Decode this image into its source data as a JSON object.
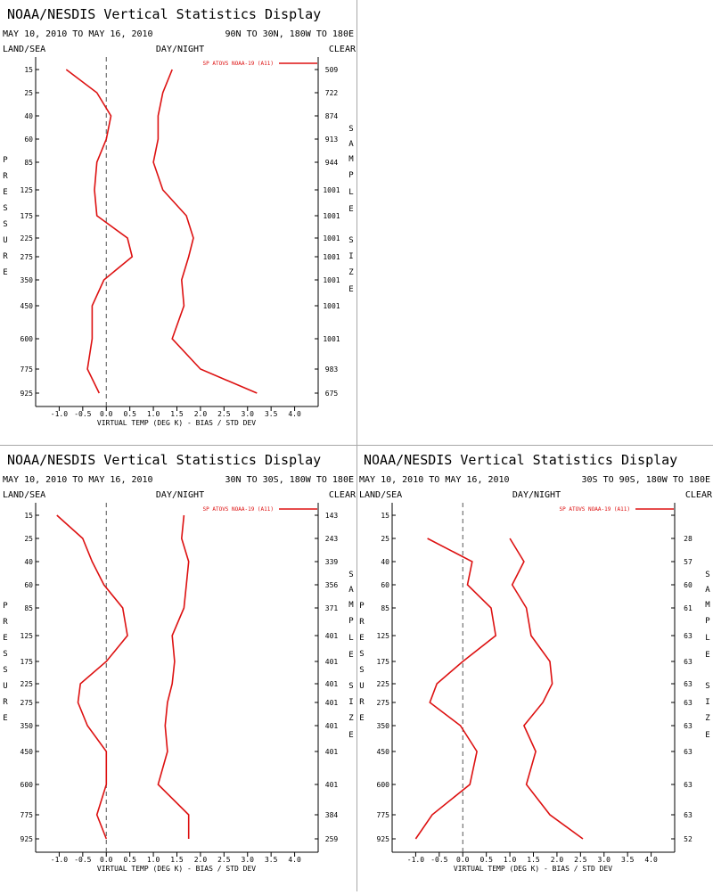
{
  "display_title": "NOAA/NESDIS Vertical Statistics Display",
  "header": {
    "date_range": "MAY 10, 2010 TO MAY 16, 2010",
    "land_sea": "LAND/SEA",
    "day_night": "DAY/NIGHT",
    "clear": "CLEAR"
  },
  "axis": {
    "xlabel": "VIRTUAL TEMP (DEG K) - BIAS / STD DEV",
    "ylabel_letters": [
      "P",
      "R",
      "E",
      "S",
      "S",
      "U",
      "R",
      "E"
    ],
    "y2label_letters": [
      "S",
      "A",
      "M",
      "P",
      "L",
      "E",
      "S",
      "I",
      "Z",
      "E"
    ],
    "x_ticks": [
      "-1.0",
      "-0.5",
      "0.0",
      "0.5",
      "1.0",
      "1.5",
      "2.0",
      "2.5",
      "3.0",
      "3.5",
      "4.0"
    ],
    "pressure_levels": [
      "15",
      "25",
      "40",
      "60",
      "85",
      "125",
      "175",
      "225",
      "275",
      "350",
      "450",
      "600",
      "775",
      "925"
    ]
  },
  "colors": {
    "line": "#dd1111",
    "zero_line": "#555555"
  },
  "chart_data": [
    {
      "type": "line",
      "region": "90N TO 30N, 180W TO 180E",
      "legend": "SP ATOVS NOAA-19 (A11)",
      "legend_position": "top-right",
      "xlim": [
        -1.5,
        4.5
      ],
      "xticks": [
        -1.0,
        -0.5,
        0.0,
        0.5,
        1.0,
        1.5,
        2.0,
        2.5,
        3.0,
        3.5,
        4.0
      ],
      "pressure": [
        15,
        25,
        40,
        60,
        85,
        125,
        175,
        225,
        275,
        350,
        450,
        600,
        775,
        925
      ],
      "series": [
        {
          "values": [
            -0.85,
            -0.2,
            0.1,
            0.0,
            -0.2,
            -0.25,
            -0.2,
            0.45,
            0.55,
            -0.05,
            -0.3,
            -0.3,
            -0.4,
            -0.15
          ]
        },
        {
          "values": [
            1.4,
            1.2,
            1.1,
            1.1,
            1.0,
            1.2,
            1.7,
            1.85,
            1.75,
            1.6,
            1.65,
            1.4,
            2.0,
            3.2
          ]
        }
      ],
      "sample_size": [
        "509",
        "722",
        "874",
        "913",
        "944",
        "1001",
        "1001",
        "1001",
        "1001",
        "1001",
        "1001",
        "1001",
        "983",
        "675"
      ]
    },
    {
      "type": "line",
      "region": "30N TO 30S, 180W TO 180E",
      "legend": "SP ATOVS NOAA-19 (A11)",
      "legend_position": "top-right",
      "xlim": [
        -1.5,
        4.5
      ],
      "xticks": [
        -1.0,
        -0.5,
        0.0,
        0.5,
        1.0,
        1.5,
        2.0,
        2.5,
        3.0,
        3.5,
        4.0
      ],
      "pressure": [
        15,
        25,
        40,
        60,
        85,
        125,
        175,
        225,
        275,
        350,
        450,
        600,
        775,
        925
      ],
      "series": [
        {
          "values": [
            -1.05,
            -0.5,
            -0.3,
            -0.05,
            0.35,
            0.45,
            0.0,
            -0.55,
            -0.6,
            -0.4,
            0.0,
            0.0,
            -0.2,
            0.0
          ]
        },
        {
          "values": [
            1.65,
            1.6,
            1.75,
            1.7,
            1.65,
            1.4,
            1.45,
            1.4,
            1.3,
            1.25,
            1.3,
            1.1,
            1.75,
            1.75
          ]
        }
      ],
      "sample_size": [
        "143",
        "243",
        "339",
        "356",
        "371",
        "401",
        "401",
        "401",
        "401",
        "401",
        "401",
        "401",
        "384",
        "259"
      ]
    },
    {
      "type": "line",
      "region": "30S TO 90S, 180W TO 180E",
      "legend": "SP ATOVS NOAA-19 (A11)",
      "legend_position": "top-right",
      "xlim": [
        -1.5,
        4.5
      ],
      "xticks": [
        -1.0,
        -0.5,
        0.0,
        0.5,
        1.0,
        1.5,
        2.0,
        2.5,
        3.0,
        3.5,
        4.0
      ],
      "pressure": [
        25,
        40,
        60,
        85,
        125,
        175,
        225,
        275,
        350,
        450,
        600,
        775,
        925
      ],
      "series": [
        {
          "values": [
            -0.75,
            0.2,
            0.1,
            0.6,
            0.7,
            0.0,
            -0.55,
            -0.7,
            -0.05,
            0.3,
            0.15,
            -0.65,
            -1.0
          ]
        },
        {
          "values": [
            1.0,
            1.3,
            1.05,
            1.35,
            1.45,
            1.85,
            1.9,
            1.7,
            1.3,
            1.55,
            1.35,
            1.85,
            2.55
          ]
        }
      ],
      "sample_size": [
        "28",
        "57",
        "60",
        "61",
        "63",
        "63",
        "63",
        "63",
        "63",
        "63",
        "63",
        "63",
        "52"
      ]
    }
  ]
}
